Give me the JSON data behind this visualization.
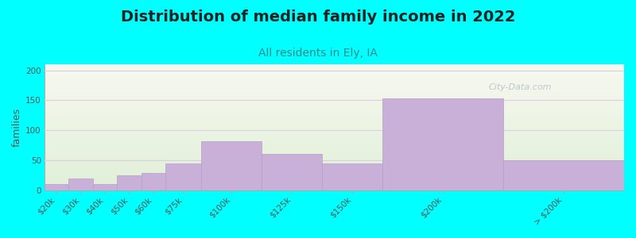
{
  "title": "Distribution of median family income in 2022",
  "subtitle": "All residents in Ely, IA",
  "ylabel": "families",
  "categories": [
    "$20k",
    "$30k",
    "$40k",
    "$50k",
    "$60k",
    "$75k",
    "$100k",
    "$125k",
    "$150k",
    "$200k",
    "> $200k"
  ],
  "values": [
    10,
    20,
    10,
    25,
    28,
    45,
    82,
    60,
    45,
    153,
    50
  ],
  "bar_lefts": [
    0,
    10,
    20,
    30,
    40,
    50,
    65,
    90,
    115,
    140,
    190
  ],
  "bar_widths": [
    10,
    10,
    10,
    10,
    10,
    15,
    25,
    25,
    25,
    50,
    50
  ],
  "bar_color": "#c8b0d8",
  "bar_edgecolor": "#b89ec8",
  "bg_color": "#00ffff",
  "grad_top_color": "#f8f8f0",
  "grad_bot_color": "#e0f0d8",
  "title_fontsize": 14,
  "subtitle_fontsize": 10,
  "ylabel_fontsize": 9,
  "tick_fontsize": 7.5,
  "yticks": [
    0,
    50,
    100,
    150,
    200
  ],
  "ylim": [
    0,
    210
  ],
  "xlim": [
    0,
    240
  ],
  "grid_color": "#d8d0e0",
  "title_color": "#222222",
  "subtitle_color": "#338888",
  "watermark": "City-Data.com",
  "tick_color": "#555555"
}
